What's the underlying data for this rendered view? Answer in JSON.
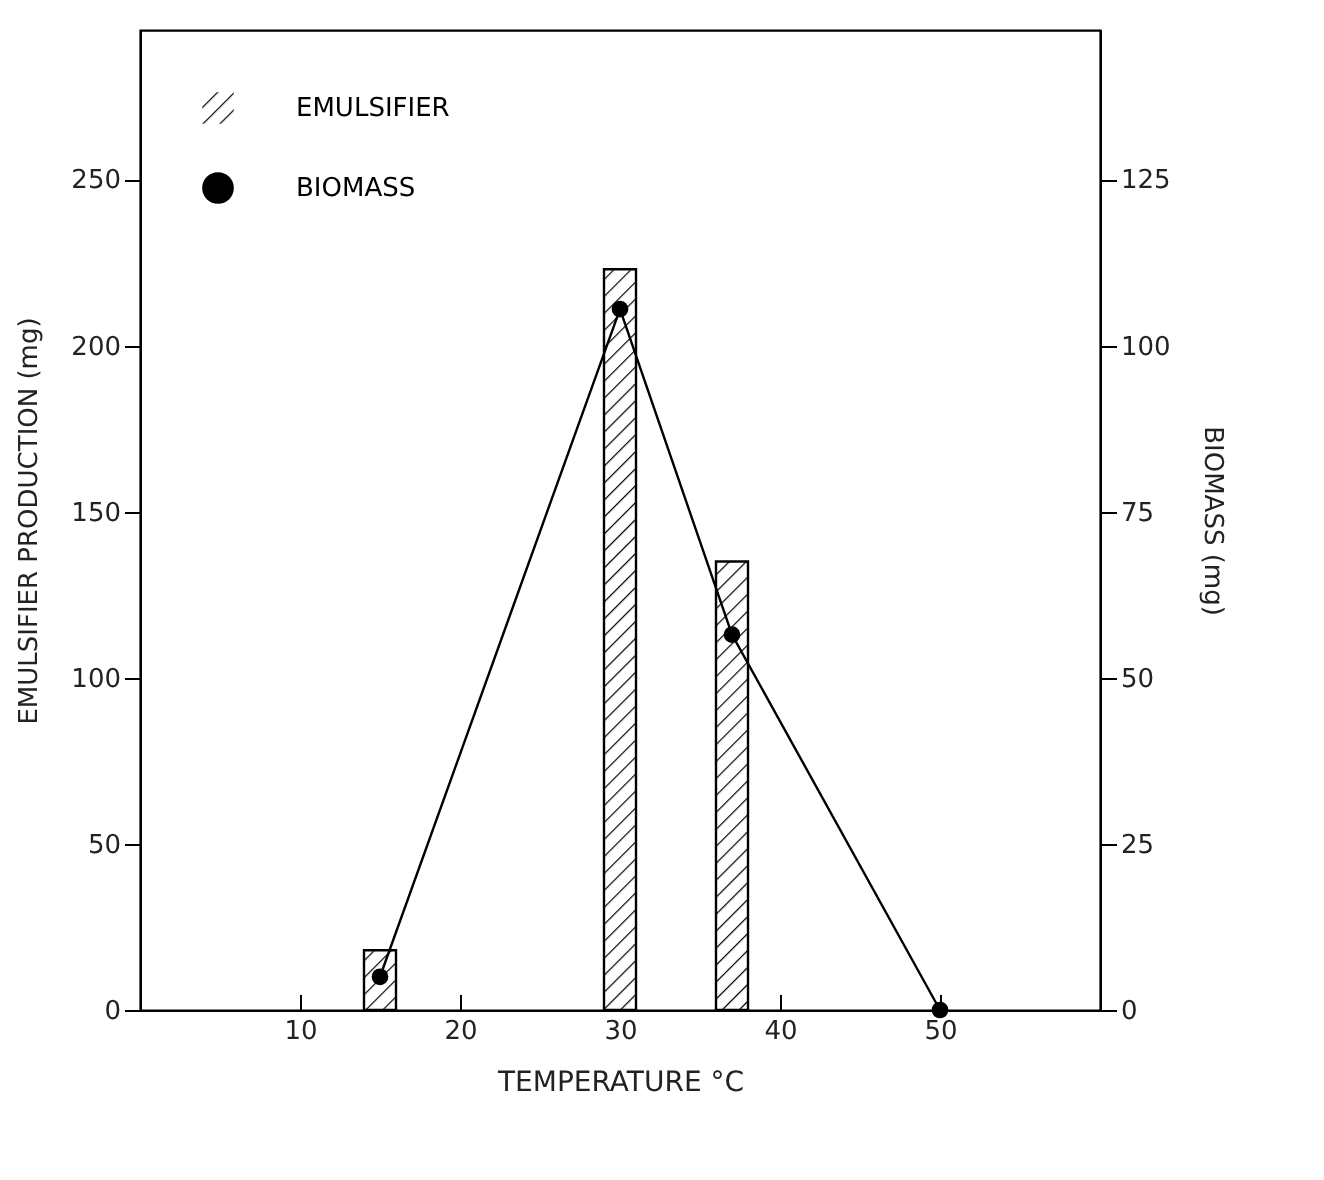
{
  "chart_data": {
    "type": "bar",
    "xlabel": "TEMPERATURE °C",
    "ylabel": "EMULSIFIER PRODUCTION  (mg)",
    "y2label": "BIOMASS  (mg)",
    "xlim": [
      0,
      60
    ],
    "xticks": [
      10,
      20,
      30,
      40,
      50
    ],
    "ylim": [
      0,
      295
    ],
    "yticks": [
      0,
      50,
      100,
      150,
      200,
      250
    ],
    "y2lim": [
      0,
      147.5
    ],
    "y2ticks": [
      0,
      25,
      50,
      75,
      100,
      125
    ],
    "legend": "top left",
    "grid": false,
    "series": [
      {
        "name": "EMULSIFIER",
        "type": "bar",
        "color": "#000000",
        "x": [
          15,
          30,
          37
        ],
        "values": [
          18,
          223,
          135
        ]
      },
      {
        "name": "BIOMASS",
        "type": "line",
        "marker": "circle",
        "axis": "y2",
        "color": "#000000",
        "x": [
          15,
          30,
          37,
          50
        ],
        "values": [
          5,
          105.5,
          56.5,
          0
        ]
      }
    ]
  }
}
